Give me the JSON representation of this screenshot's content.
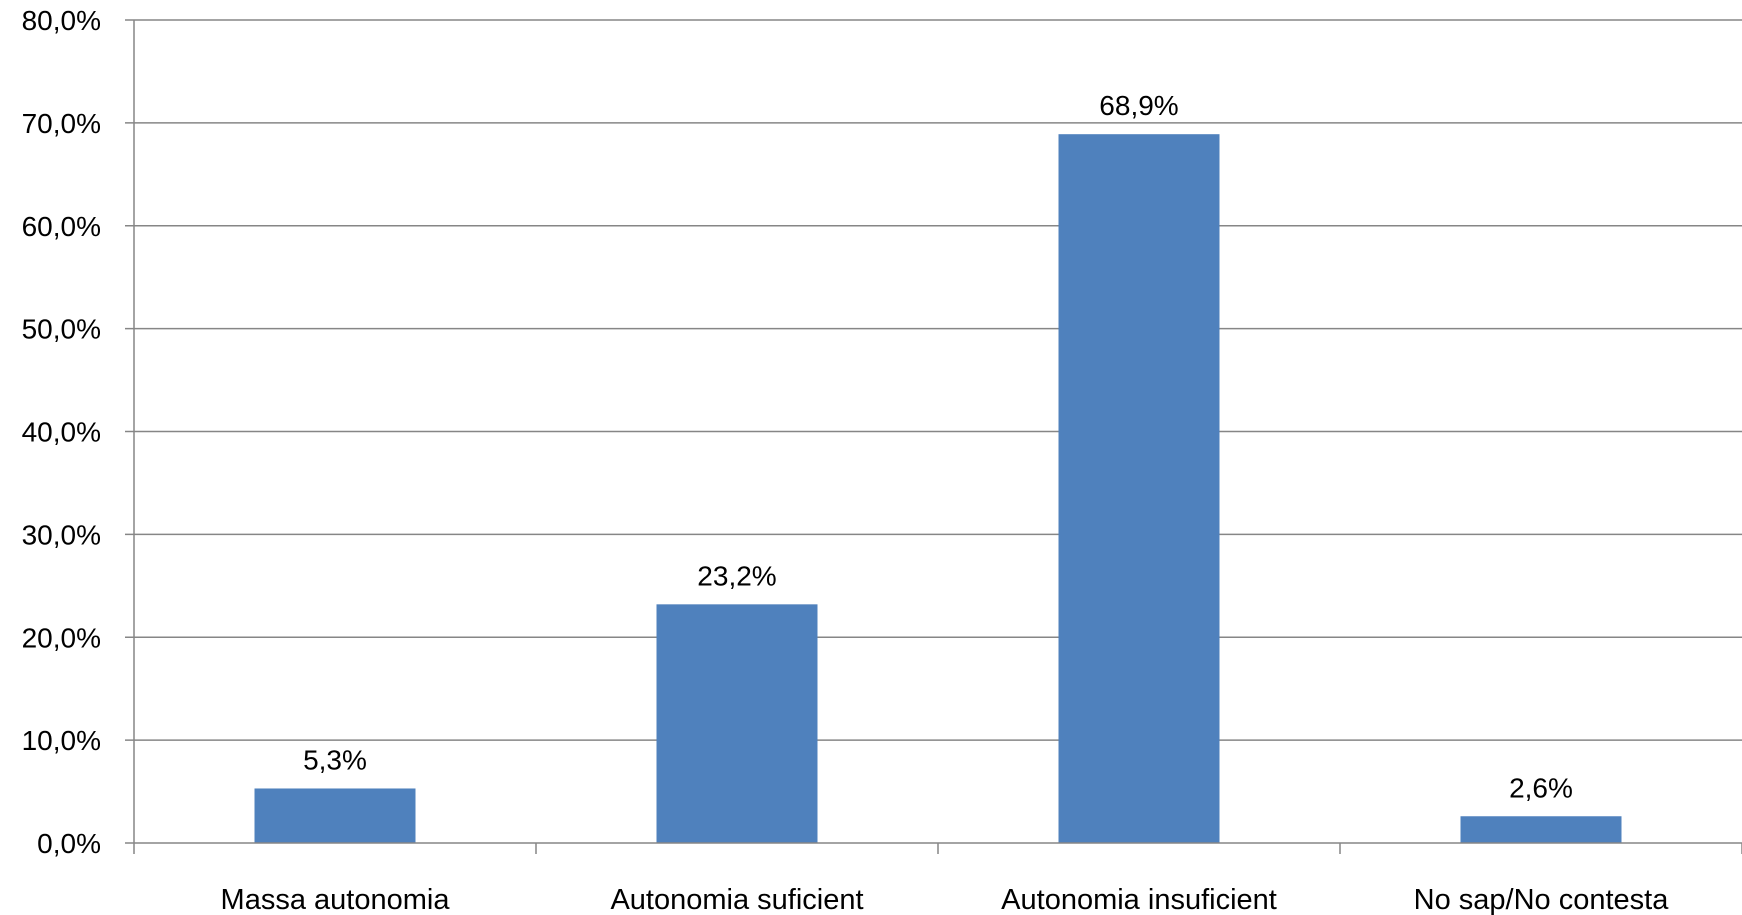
{
  "chart_data": {
    "type": "bar",
    "title": "",
    "xlabel": "",
    "ylabel": "",
    "categories": [
      "Massa autonomia",
      "Autonomia suficient",
      "Autonomia insuficient",
      "No sap/No contesta"
    ],
    "values": [
      5.3,
      23.2,
      68.9,
      2.6
    ],
    "data_labels": [
      "5,3%",
      "23,2%",
      "68,9%",
      "2,6%"
    ],
    "ylim": [
      0,
      80
    ],
    "yticks": [
      0,
      10,
      20,
      30,
      40,
      50,
      60,
      70,
      80
    ],
    "ytick_labels": [
      "0,0%",
      "10,0%",
      "20,0%",
      "30,0%",
      "40,0%",
      "50,0%",
      "60,0%",
      "70,0%",
      "80,0%"
    ],
    "grid": true,
    "legend": "none",
    "colors": {
      "bar": "#4f81bd",
      "grid": "#868686",
      "axis": "#868686"
    }
  }
}
